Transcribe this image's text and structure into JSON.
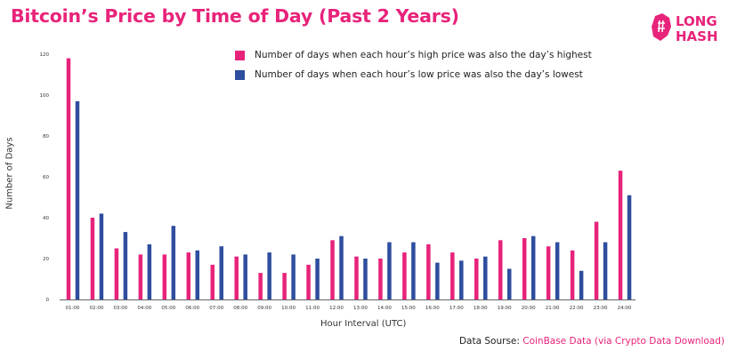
{
  "title": "Bitcoin’s Price by Time of Day (Past 2 Years)",
  "logo": {
    "line1": "LONG",
    "line2": "HASH"
  },
  "source": {
    "prefix": "Data Sourse: ",
    "link": "CoinBase Data (via Crypto Data Download)"
  },
  "colors": {
    "accent": "#e8237a",
    "high": "#e8237a",
    "low": "#2e4e9e"
  },
  "chart_data": {
    "type": "bar",
    "title": "Bitcoin’s Price by Time of Day (Past 2 Years)",
    "xlabel": "Hour Interval (UTC)",
    "ylabel": "Number of Days",
    "ylim": [
      0,
      120
    ],
    "yticks": [
      0,
      20,
      40,
      60,
      80,
      100,
      120
    ],
    "grid": false,
    "legend_position": "top",
    "categories": [
      "01:00",
      "02:00",
      "03:00",
      "04:00",
      "05:00",
      "06:00",
      "07:00",
      "08:00",
      "09:00",
      "10:00",
      "11:00",
      "12:00",
      "13:00",
      "14:00",
      "15:00",
      "16:00",
      "17:00",
      "18:00",
      "19:00",
      "20:00",
      "21:00",
      "22:00",
      "23:00",
      "24:00"
    ],
    "series": [
      {
        "name": "Number of days when each hour’s high price was also the day’s highest",
        "color": "#e8237a",
        "values": [
          118,
          40,
          25,
          22,
          22,
          23,
          17,
          21,
          13,
          13,
          17,
          29,
          21,
          20,
          23,
          27,
          23,
          20,
          29,
          30,
          26,
          24,
          38,
          63
        ]
      },
      {
        "name": "Number of days when each hour’s low price was also the day’s lowest",
        "color": "#2e4e9e",
        "values": [
          97,
          42,
          33,
          27,
          36,
          24,
          26,
          22,
          23,
          22,
          20,
          31,
          20,
          28,
          28,
          18,
          19,
          21,
          15,
          31,
          28,
          14,
          28,
          51
        ]
      }
    ]
  }
}
